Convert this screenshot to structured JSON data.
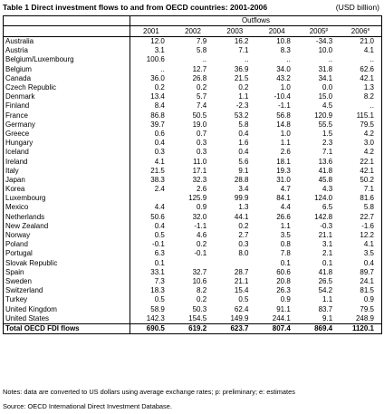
{
  "title": "Table 1 Direct investment flows to and from OECD countries: 2001-2006",
  "unit": "(USD billion)",
  "group_header": "Outflows",
  "years": [
    "2001",
    "2002",
    "2003",
    "2004",
    "2005",
    "2006"
  ],
  "year_marks": [
    "",
    "",
    "",
    "",
    "p",
    "e"
  ],
  "rows": [
    {
      "country": "Australia",
      "values": [
        "12.0",
        "7.9",
        "16.2",
        "10.8",
        "-34.3",
        "21.0"
      ]
    },
    {
      "country": "Austria",
      "values": [
        "3.1",
        "5.8",
        "7.1",
        "8.3",
        "10.0",
        "4.1"
      ]
    },
    {
      "country": "Belgium/Luxembourg",
      "values": [
        "100.6",
        "..",
        "..",
        "..",
        "..",
        ".."
      ]
    },
    {
      "country": "Belgium",
      "values": [
        "..",
        "12.7",
        "36.9",
        "34.0",
        "31.8",
        "62.6"
      ]
    },
    {
      "country": "Canada",
      "values": [
        "36.0",
        "26.8",
        "21.5",
        "43.2",
        "34.1",
        "42.1"
      ]
    },
    {
      "country": "Czech Republic",
      "values": [
        "0.2",
        "0.2",
        "0.2",
        "1.0",
        "0.0",
        "1.3"
      ]
    },
    {
      "country": "Denmark",
      "values": [
        "13.4",
        "5.7",
        "1.1",
        "-10.4",
        "15.0",
        "8.2"
      ]
    },
    {
      "country": "Finland",
      "values": [
        "8.4",
        "7.4",
        "-2.3",
        "-1.1",
        "4.5",
        ".."
      ]
    },
    {
      "country": "France",
      "values": [
        "86.8",
        "50.5",
        "53.2",
        "56.8",
        "120.9",
        "115.1"
      ]
    },
    {
      "country": "Germany",
      "values": [
        "39.7",
        "19.0",
        "5.8",
        "14.8",
        "55.5",
        "79.5"
      ]
    },
    {
      "country": "Greece",
      "values": [
        "0.6",
        "0.7",
        "0.4",
        "1.0",
        "1.5",
        "4.2"
      ]
    },
    {
      "country": "Hungary",
      "values": [
        "0.4",
        "0.3",
        "1.6",
        "1.1",
        "2.3",
        "3.0"
      ]
    },
    {
      "country": "Iceland",
      "values": [
        "0.3",
        "0.3",
        "0.4",
        "2.6",
        "7.1",
        "4.2"
      ]
    },
    {
      "country": "Ireland",
      "values": [
        "4.1",
        "11.0",
        "5.6",
        "18.1",
        "13.6",
        "22.1"
      ]
    },
    {
      "country": "Italy",
      "values": [
        "21.5",
        "17.1",
        "9.1",
        "19.3",
        "41.8",
        "42.1"
      ]
    },
    {
      "country": "Japan",
      "values": [
        "38.3",
        "32.3",
        "28.8",
        "31.0",
        "45.8",
        "50.2"
      ]
    },
    {
      "country": "Korea",
      "values": [
        "2.4",
        "2.6",
        "3.4",
        "4.7",
        "4.3",
        "7.1"
      ]
    },
    {
      "country": "Luxembourg",
      "values": [
        "",
        "125.9",
        "99.9",
        "84.1",
        "124.0",
        "81.6"
      ]
    },
    {
      "country": "Mexico",
      "values": [
        "4.4",
        "0.9",
        "1.3",
        "4.4",
        "6.5",
        "5.8"
      ]
    },
    {
      "country": "Netherlands",
      "values": [
        "50.6",
        "32.0",
        "44.1",
        "26.6",
        "142.8",
        "22.7"
      ]
    },
    {
      "country": "New Zealand",
      "values": [
        "0.4",
        "-1.1",
        "0.2",
        "1.1",
        "-0.3",
        "-1.6"
      ]
    },
    {
      "country": "Norway",
      "values": [
        "0.5",
        "4.6",
        "2.7",
        "3.5",
        "21.1",
        "12.2"
      ]
    },
    {
      "country": "Poland",
      "values": [
        "-0.1",
        "0.2",
        "0.3",
        "0.8",
        "3.1",
        "4.1"
      ]
    },
    {
      "country": "Portugal",
      "values": [
        "6.3",
        "-0.1",
        "8.0",
        "7.8",
        "2.1",
        "3.5"
      ]
    },
    {
      "country": "Slovak Republic",
      "values": [
        "0.1",
        "",
        "",
        "0.1",
        "0.1",
        "0.4"
      ]
    },
    {
      "country": "Spain",
      "values": [
        "33.1",
        "32.7",
        "28.7",
        "60.6",
        "41.8",
        "89.7"
      ]
    },
    {
      "country": "Sweden",
      "values": [
        "7.3",
        "10.6",
        "21.1",
        "20.8",
        "26.5",
        "24.1"
      ]
    },
    {
      "country": "Switzerland",
      "values": [
        "18.3",
        "8.2",
        "15.4",
        "26.3",
        "54.2",
        "81.5"
      ]
    },
    {
      "country": "Turkey",
      "values": [
        "0.5",
        "0.2",
        "0.5",
        "0.9",
        "1.1",
        "0.9"
      ]
    },
    {
      "country": "United Kingdom",
      "values": [
        "58.9",
        "50.3",
        "62.4",
        "91.1",
        "83.7",
        "79.5"
      ]
    },
    {
      "country": "United States",
      "values": [
        "142.3",
        "154.5",
        "149.9",
        "244.1",
        "9.1",
        "248.9"
      ]
    }
  ],
  "total": {
    "label": "Total OECD FDI flows",
    "values": [
      "690.5",
      "619.2",
      "623.7",
      "807.4",
      "869.4",
      "1120.1"
    ]
  },
  "notes": "Notes: data are converted to US dollars using average exchange rates; p: preliminary; e: estimates",
  "source": "Source: OECD International Direct Investment Database."
}
